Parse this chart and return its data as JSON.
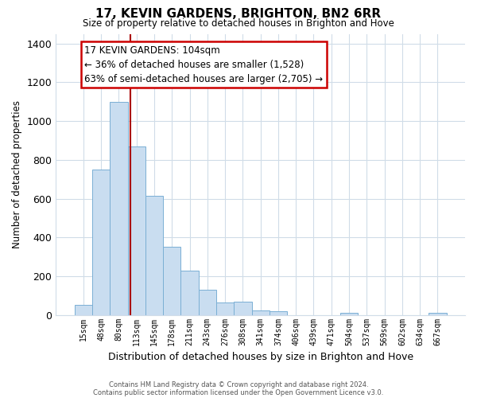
{
  "title": "17, KEVIN GARDENS, BRIGHTON, BN2 6RR",
  "subtitle": "Size of property relative to detached houses in Brighton and Hove",
  "xlabel": "Distribution of detached houses by size in Brighton and Hove",
  "ylabel": "Number of detached properties",
  "footnote1": "Contains HM Land Registry data © Crown copyright and database right 2024.",
  "footnote2": "Contains public sector information licensed under the Open Government Licence v3.0.",
  "bin_labels": [
    "15sqm",
    "48sqm",
    "80sqm",
    "113sqm",
    "145sqm",
    "178sqm",
    "211sqm",
    "243sqm",
    "276sqm",
    "308sqm",
    "341sqm",
    "374sqm",
    "406sqm",
    "439sqm",
    "471sqm",
    "504sqm",
    "537sqm",
    "569sqm",
    "602sqm",
    "634sqm",
    "667sqm"
  ],
  "bar_heights": [
    50,
    750,
    1100,
    870,
    615,
    350,
    230,
    130,
    65,
    70,
    25,
    20,
    0,
    0,
    0,
    10,
    0,
    0,
    0,
    0,
    10
  ],
  "bar_color": "#c9ddf0",
  "bar_edge_color": "#7aafd4",
  "vline_color": "#aa0000",
  "vline_pos": 2.67,
  "ylim": [
    0,
    1450
  ],
  "yticks": [
    0,
    200,
    400,
    600,
    800,
    1000,
    1200,
    1400
  ],
  "annotation_title": "17 KEVIN GARDENS: 104sqm",
  "annotation_line1": "← 36% of detached houses are smaller (1,528)",
  "annotation_line2": "63% of semi-detached houses are larger (2,705) →",
  "annotation_box_color": "#ffffff",
  "annotation_box_edge": "#cc0000",
  "bg_color": "#ffffff",
  "grid_color": "#d0dce8"
}
